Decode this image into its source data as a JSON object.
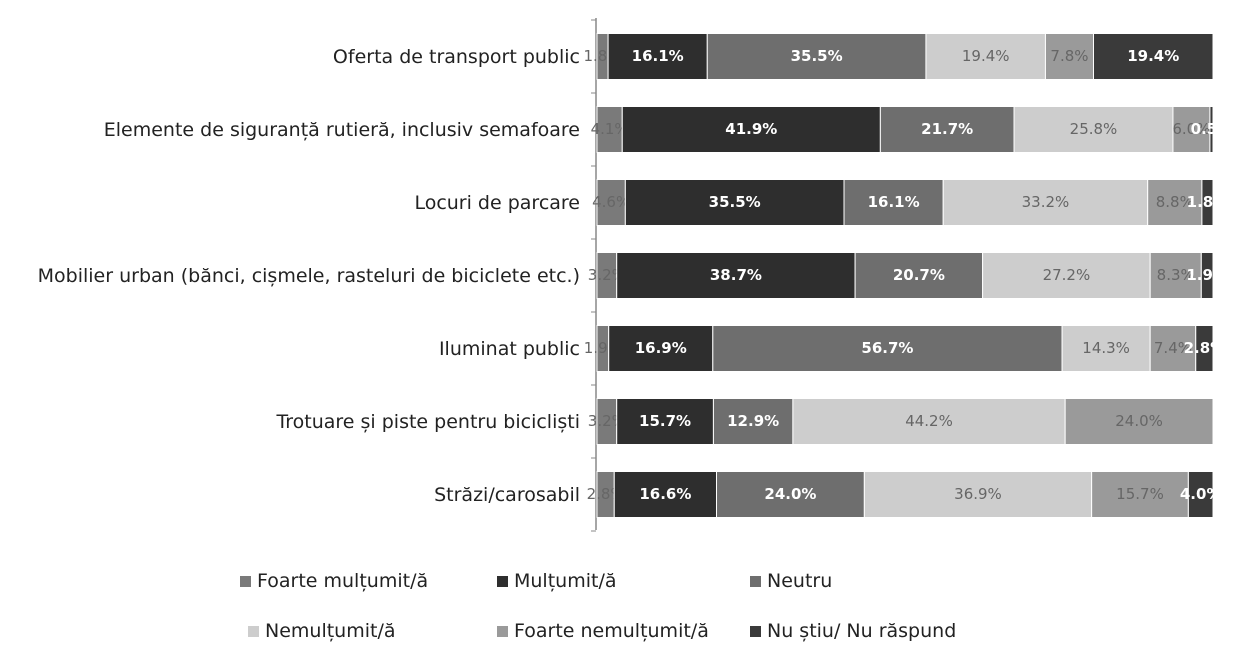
{
  "chart_data": {
    "type": "stacked_barh",
    "categories": [
      "Oferta de transport public",
      "Elemente de siguranță rutieră, inclusiv semafoare",
      "Locuri de parcare",
      "Mobilier urban (bănci, cișmele, rasteluri de biciclete etc.)",
      "Iluminat public",
      "Trotuare și piste pentru bicicliști",
      "Străzi/carosabil"
    ],
    "xlim": [
      0,
      100
    ],
    "series": [
      {
        "name": "Foarte mulțumit/ă",
        "color": "#7a7a7a",
        "values": [
          1.8,
          4.1,
          4.6,
          3.2,
          1.9,
          3.2,
          2.8
        ],
        "value_labels": [
          "1.8%",
          "4.1%",
          "4.6%",
          "3.2%",
          "1.9%",
          "3.2%",
          "2.8%"
        ]
      },
      {
        "name": "Mulțumit/ă",
        "color": "#2e2e2e",
        "values": [
          16.1,
          41.9,
          35.5,
          38.7,
          16.9,
          15.7,
          16.6
        ],
        "value_labels": [
          "16.1%",
          "41.9%",
          "35.5%",
          "38.7%",
          "16.9%",
          "15.7%",
          "16.6%"
        ]
      },
      {
        "name": "Neutru",
        "color": "#6e6e6e",
        "values": [
          35.5,
          21.7,
          16.1,
          20.7,
          56.7,
          12.9,
          24.0
        ],
        "value_labels": [
          "35.5%",
          "21.7%",
          "16.1%",
          "20.7%",
          "56.7%",
          "12.9%",
          "24.0%"
        ]
      },
      {
        "name": "Nemulțumit/ă",
        "color": "#cdcdcd",
        "values": [
          19.4,
          25.8,
          33.2,
          27.2,
          14.3,
          44.2,
          36.9
        ],
        "value_labels": [
          "19.4%",
          "25.8%",
          "33.2%",
          "27.2%",
          "14.3%",
          "44.2%",
          "36.9%"
        ]
      },
      {
        "name": "Foarte nemulțumit/ă",
        "color": "#9a9a9a",
        "values": [
          7.8,
          6.0,
          8.8,
          8.3,
          7.4,
          24.0,
          15.7
        ],
        "value_labels": [
          "7.8%",
          "6.0%",
          "8.8%",
          "8.3%",
          "7.4%",
          "24.0%",
          "15.7%"
        ]
      },
      {
        "name": "Nu știu/ Nu răspund",
        "color": "#3a3a3a",
        "values": [
          19.4,
          0.5,
          1.8,
          1.9,
          2.8,
          0,
          4.0
        ],
        "value_labels": [
          "19.4%",
          "0.5%",
          "1.8%",
          "1.9%",
          "2.8%",
          null,
          "4.0%"
        ]
      }
    ]
  }
}
